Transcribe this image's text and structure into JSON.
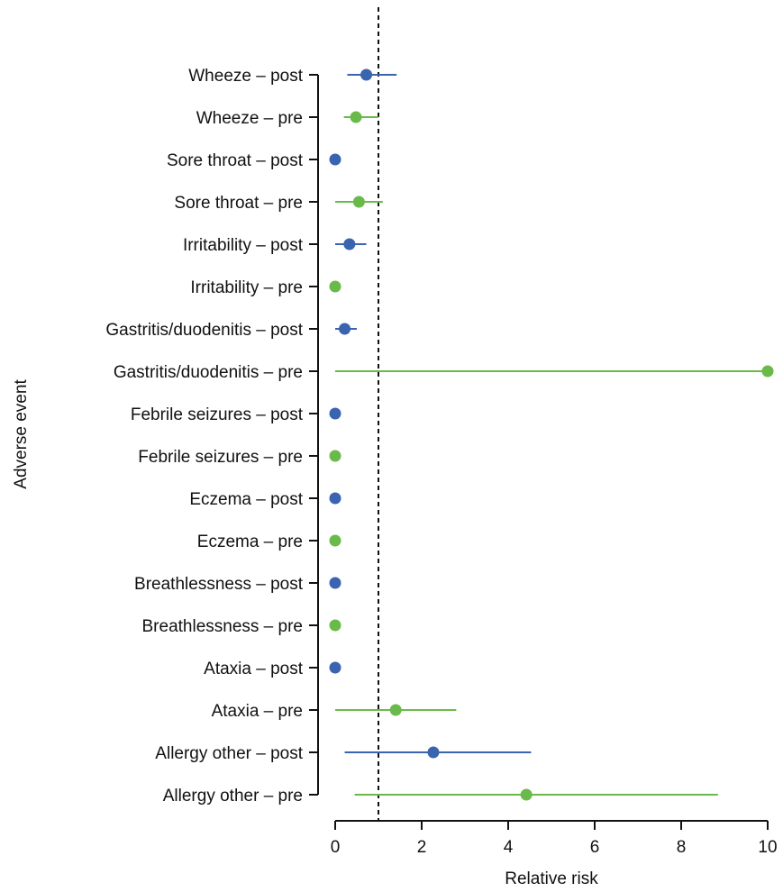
{
  "chart_data": {
    "type": "scatter",
    "subtype": "forest-plot",
    "title": "",
    "xlabel": "Relative risk",
    "ylabel": "Adverse event",
    "xlim": [
      0,
      10
    ],
    "xticks": [
      "0",
      "2",
      "4",
      "6",
      "8",
      "10"
    ],
    "reference_line": 1,
    "grid": false,
    "legend": "none",
    "colors": {
      "post": "#3a63b0",
      "pre": "#6aba4b"
    },
    "rows": [
      {
        "label": "Wheeze – post",
        "group": "post",
        "estimate": 0.72,
        "ci_low": 0.28,
        "ci_high": 1.42
      },
      {
        "label": "Wheeze – pre",
        "group": "pre",
        "estimate": 0.48,
        "ci_low": 0.2,
        "ci_high": 1.0
      },
      {
        "label": "Sore throat – post",
        "group": "post",
        "estimate": 0.0,
        "ci_low": null,
        "ci_high": null
      },
      {
        "label": "Sore throat – pre",
        "group": "pre",
        "estimate": 0.55,
        "ci_low": 0.0,
        "ci_high": 1.1
      },
      {
        "label": "Irritability – post",
        "group": "post",
        "estimate": 0.33,
        "ci_low": 0.0,
        "ci_high": 0.72
      },
      {
        "label": "Irritability – pre",
        "group": "pre",
        "estimate": 0.0,
        "ci_low": null,
        "ci_high": null
      },
      {
        "label": "Gastritis/duodenitis – post",
        "group": "post",
        "estimate": 0.22,
        "ci_low": 0.0,
        "ci_high": 0.5
      },
      {
        "label": "Gastritis/duodenitis – pre",
        "group": "pre",
        "estimate": 10.0,
        "ci_low": 0.0,
        "ci_high": 10.0
      },
      {
        "label": "Febrile seizures – post",
        "group": "post",
        "estimate": 0.0,
        "ci_low": null,
        "ci_high": null
      },
      {
        "label": "Febrile seizures – pre",
        "group": "pre",
        "estimate": 0.0,
        "ci_low": null,
        "ci_high": null
      },
      {
        "label": "Eczema – post",
        "group": "post",
        "estimate": 0.0,
        "ci_low": null,
        "ci_high": null
      },
      {
        "label": "Eczema – pre",
        "group": "pre",
        "estimate": 0.0,
        "ci_low": null,
        "ci_high": null
      },
      {
        "label": "Breathlessness – post",
        "group": "post",
        "estimate": 0.0,
        "ci_low": null,
        "ci_high": null
      },
      {
        "label": "Breathlessness – pre",
        "group": "pre",
        "estimate": 0.0,
        "ci_low": null,
        "ci_high": null
      },
      {
        "label": "Ataxia – post",
        "group": "post",
        "estimate": 0.0,
        "ci_low": null,
        "ci_high": null
      },
      {
        "label": "Ataxia – pre",
        "group": "pre",
        "estimate": 1.4,
        "ci_low": 0.0,
        "ci_high": 2.8
      },
      {
        "label": "Allergy other – post",
        "group": "post",
        "estimate": 2.27,
        "ci_low": 0.22,
        "ci_high": 4.53
      },
      {
        "label": "Allergy other – pre",
        "group": "pre",
        "estimate": 4.42,
        "ci_low": 0.45,
        "ci_high": 8.85
      }
    ]
  }
}
